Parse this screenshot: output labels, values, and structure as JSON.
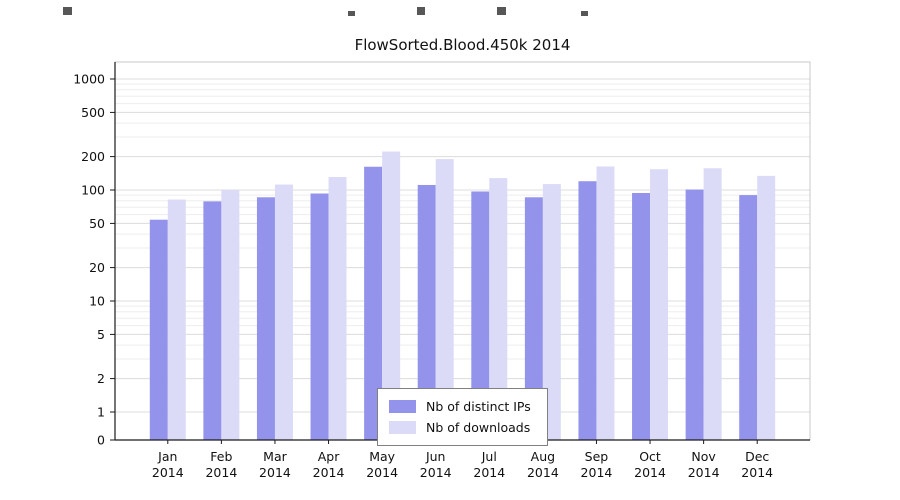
{
  "chart_data": {
    "type": "bar",
    "title": "FlowSorted.Blood.450k 2014",
    "categories": [
      "Jan 2014",
      "Feb 2014",
      "Mar 2014",
      "Apr 2014",
      "May 2014",
      "Jun 2014",
      "Jul 2014",
      "Aug 2014",
      "Sep 2014",
      "Oct 2014",
      "Nov 2014",
      "Dec 2014"
    ],
    "series": [
      {
        "name": "Nb of distinct IPs",
        "color": "#9493ec",
        "values": [
          54,
          79,
          86,
          93,
          162,
          111,
          97,
          86,
          120,
          94,
          101,
          90
        ]
      },
      {
        "name": "Nb of downloads",
        "color": "#dbdbf8",
        "values": [
          82,
          100,
          112,
          131,
          222,
          190,
          128,
          113,
          163,
          154,
          157,
          134
        ]
      }
    ],
    "yticks": [
      0,
      1,
      2,
      5,
      10,
      20,
      50,
      100,
      200,
      500,
      1000
    ],
    "yscale": "log",
    "ylim": [
      0,
      1400
    ],
    "xlabel": "",
    "ylabel": "",
    "grid": true,
    "legend_position": "bottom-center"
  },
  "colors": {
    "grid_major": "#dcdcdc",
    "grid_minor": "#ededed",
    "axis": "#1a1a1a",
    "plot_border": "#c9c9c9",
    "text": "#111111"
  }
}
